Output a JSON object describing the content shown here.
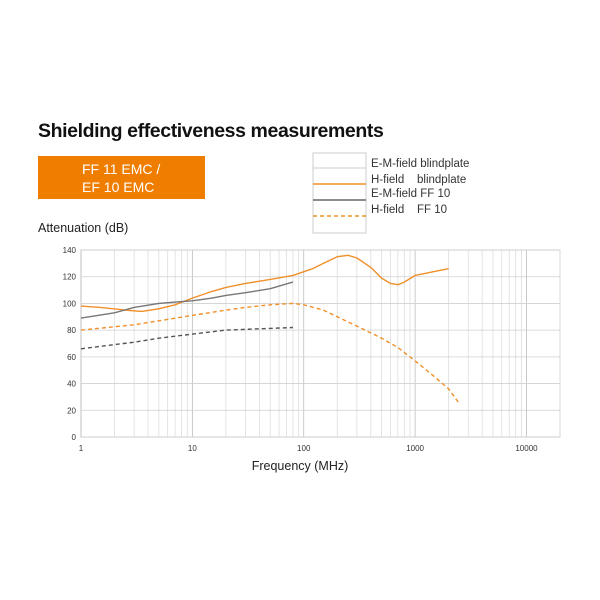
{
  "title": "Shielding effectiveness measurements",
  "badge": {
    "lines": [
      "FF 11 EMC /",
      "EF 10 EMC"
    ],
    "color": "#ef7d00"
  },
  "legend": [
    {
      "label": "E-M-field blindplate",
      "color": "#cccccc",
      "style": "solid"
    },
    {
      "label": "H-field    blindplate",
      "color": "#f0902a",
      "style": "solid"
    },
    {
      "label": "E-M-field FF 10",
      "color": "#666666",
      "style": "solid"
    },
    {
      "label": "H-field    FF 10",
      "color": "#f0902a",
      "style": "dashed"
    }
  ],
  "chart_data": {
    "type": "line",
    "ylabel": "Attenuation (dB)",
    "xlabel": "Frequency (MHz)",
    "xscale": "log",
    "xlim": [
      1,
      20000
    ],
    "ylim": [
      0,
      140
    ],
    "grid": true,
    "x_ticks": [
      "1",
      "10",
      "100",
      "1000",
      "10000"
    ],
    "y_ticks": [
      "0",
      "20",
      "40",
      "60",
      "80",
      "100",
      "120",
      "140"
    ],
    "series": [
      {
        "color": "#f0902a",
        "style": "solid",
        "points": [
          [
            1,
            98
          ],
          [
            1.5,
            97
          ],
          [
            2.5,
            95
          ],
          [
            3.5,
            94
          ],
          [
            5,
            96
          ],
          [
            7,
            99
          ],
          [
            10,
            104
          ],
          [
            15,
            109
          ],
          [
            20,
            112
          ],
          [
            30,
            115
          ],
          [
            50,
            118
          ],
          [
            80,
            121
          ],
          [
            120,
            126
          ],
          [
            150,
            130
          ],
          [
            200,
            135
          ],
          [
            250,
            136
          ],
          [
            300,
            134
          ],
          [
            400,
            127
          ],
          [
            500,
            119
          ],
          [
            600,
            115
          ],
          [
            700,
            114
          ],
          [
            800,
            116
          ],
          [
            1000,
            121
          ],
          [
            1500,
            124
          ],
          [
            2000,
            126
          ]
        ]
      },
      {
        "color": "#777777",
        "style": "solid",
        "points": [
          [
            1,
            89
          ],
          [
            2,
            93
          ],
          [
            3,
            97
          ],
          [
            5,
            100
          ],
          [
            7,
            101
          ],
          [
            10,
            102
          ],
          [
            15,
            104
          ],
          [
            20,
            106
          ],
          [
            30,
            108
          ],
          [
            50,
            111
          ],
          [
            80,
            116
          ]
        ]
      },
      {
        "color": "#f0902a",
        "style": "dashed",
        "points": [
          [
            1,
            80
          ],
          [
            3,
            84
          ],
          [
            5,
            87
          ],
          [
            10,
            91
          ],
          [
            20,
            95
          ],
          [
            30,
            97
          ],
          [
            50,
            99
          ],
          [
            80,
            100
          ],
          [
            100,
            99
          ],
          [
            150,
            95
          ],
          [
            200,
            90
          ],
          [
            300,
            83
          ],
          [
            500,
            74
          ],
          [
            700,
            67
          ],
          [
            1000,
            57
          ],
          [
            1500,
            45
          ],
          [
            2000,
            36
          ],
          [
            2500,
            25
          ]
        ]
      },
      {
        "color": "#555555",
        "style": "dashed",
        "points": [
          [
            1,
            66
          ],
          [
            3,
            71
          ],
          [
            5,
            74
          ],
          [
            10,
            77
          ],
          [
            20,
            80
          ],
          [
            40,
            81
          ],
          [
            80,
            82
          ]
        ]
      }
    ]
  }
}
